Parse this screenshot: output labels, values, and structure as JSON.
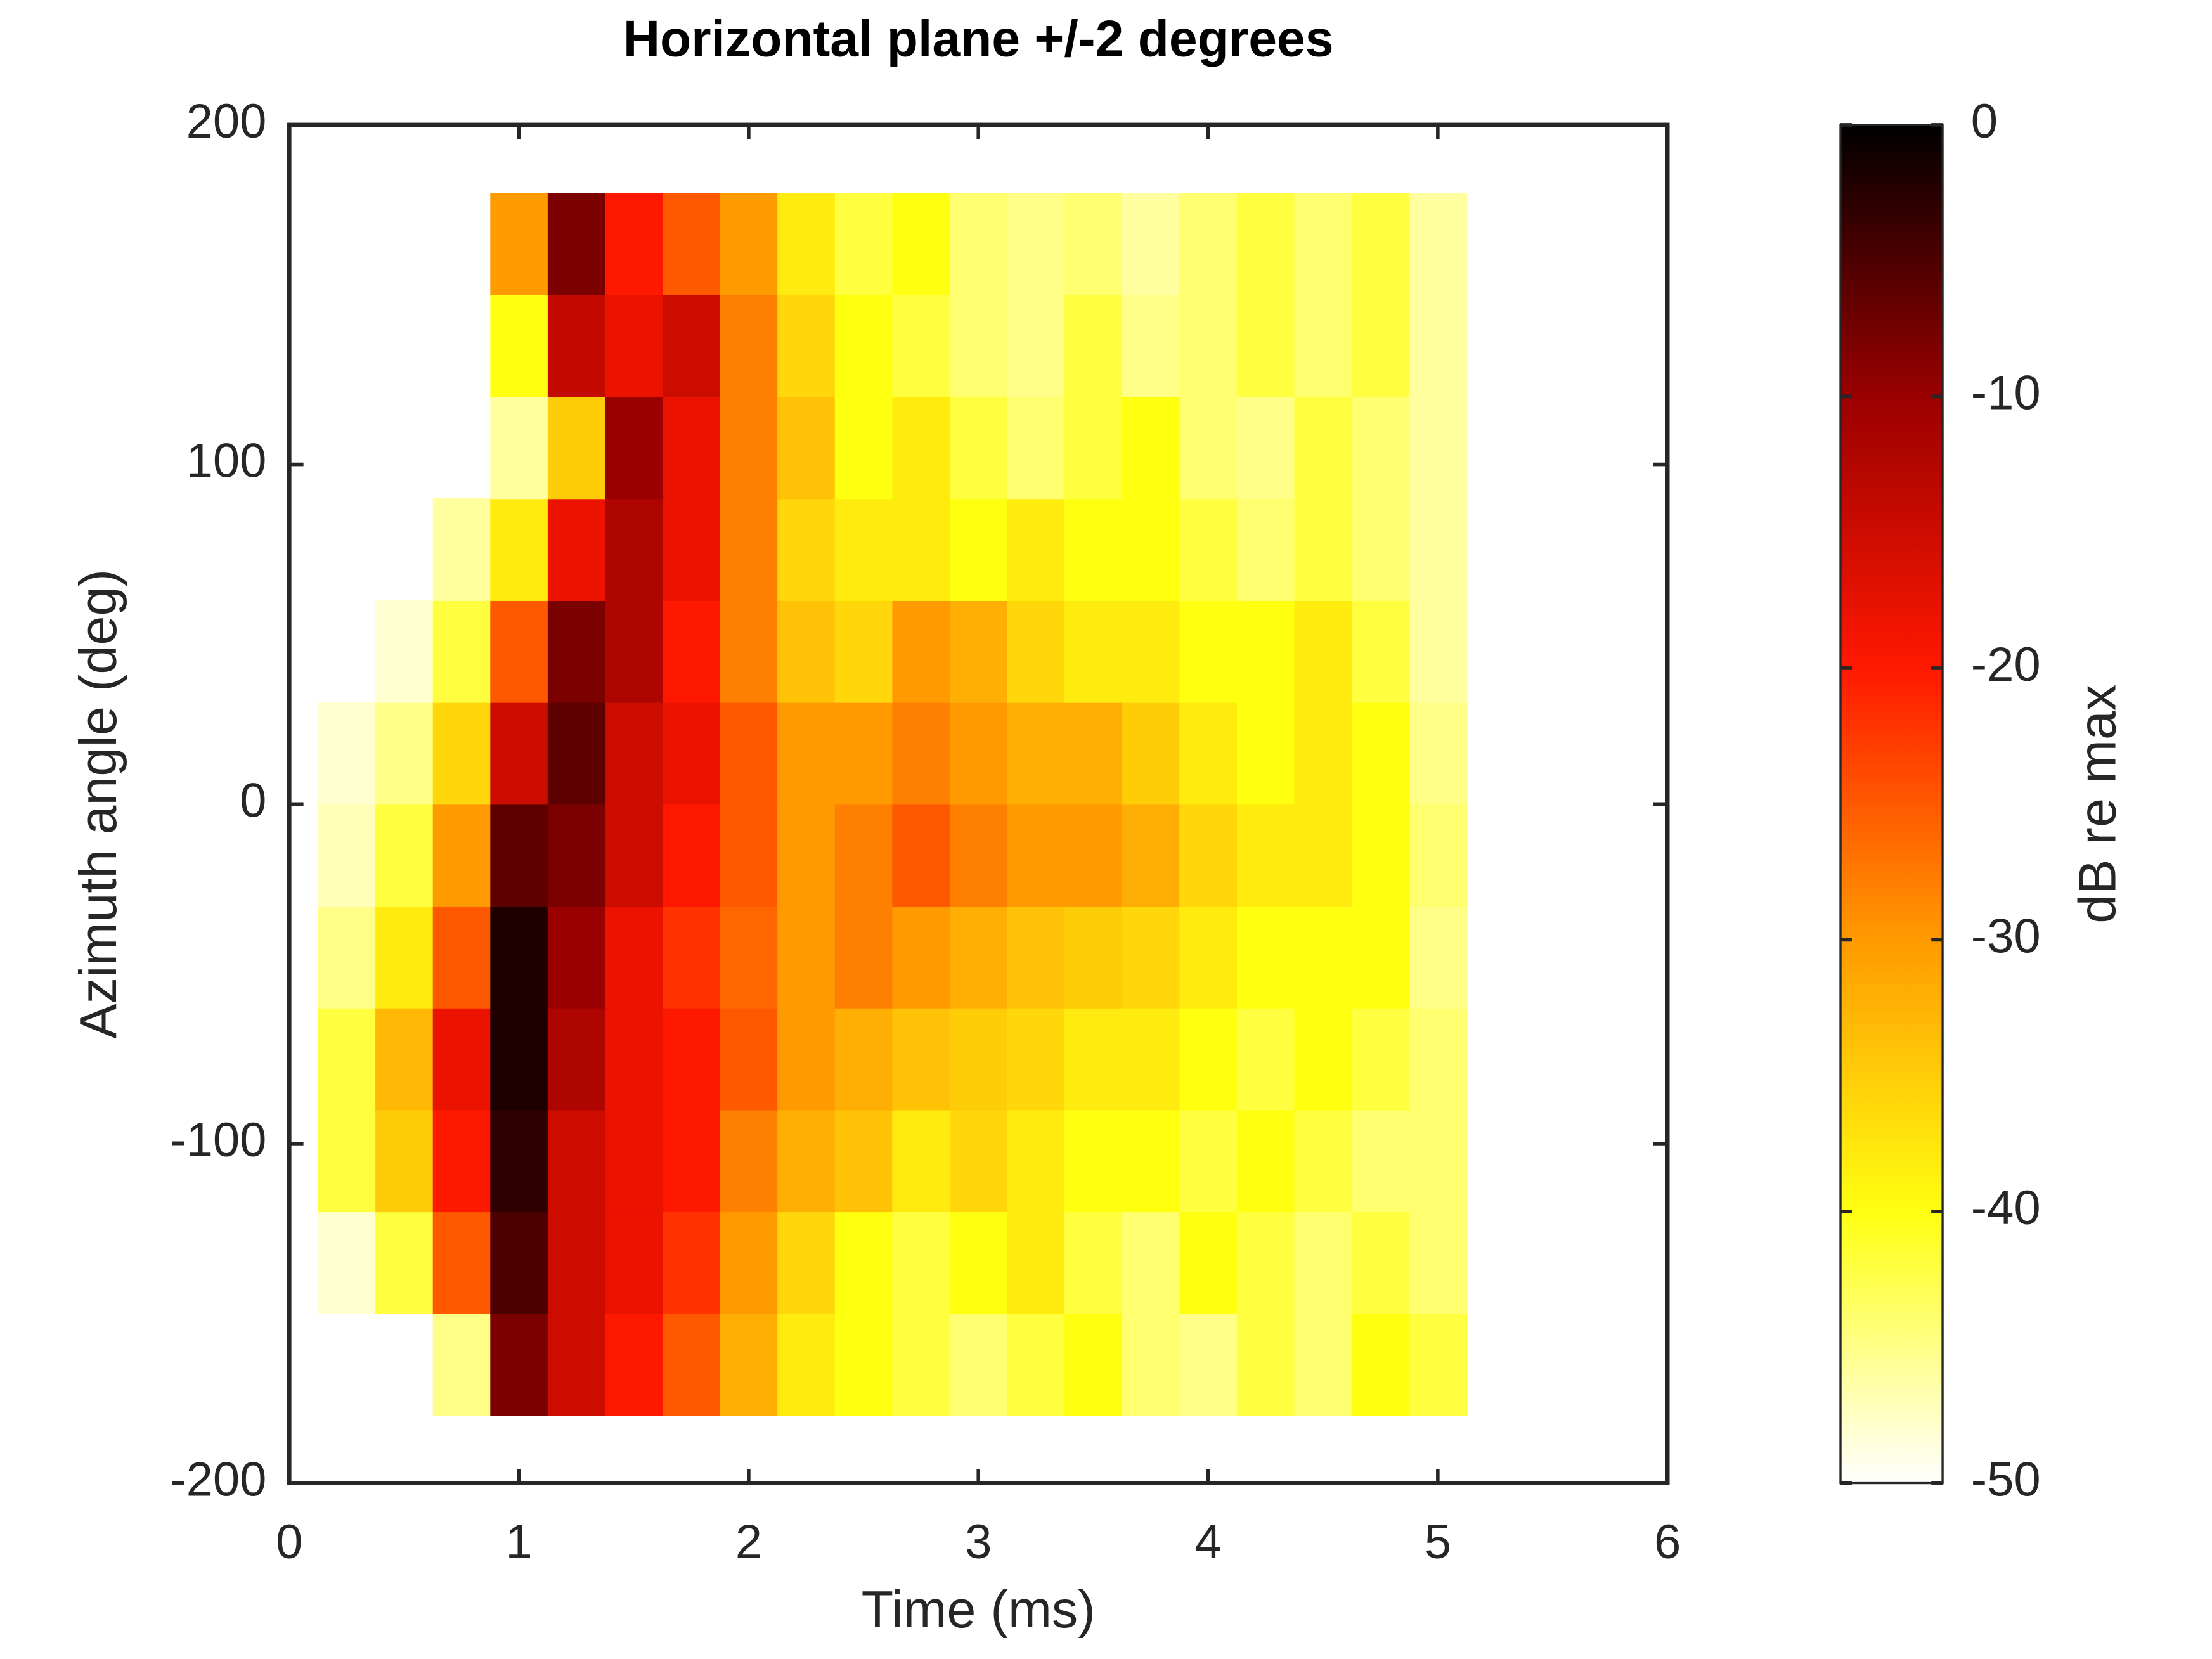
{
  "chart_data": {
    "type": "heatmap",
    "title": "Horizontal plane +/-2 degrees",
    "xlabel": "Time (ms)",
    "ylabel": "Azimuth angle (deg)",
    "colorbar_label": "dB re max",
    "x": [
      0.25,
      0.5,
      0.75,
      1.0,
      1.25,
      1.5,
      1.75,
      2.0,
      2.25,
      2.5,
      2.75,
      3.0,
      3.25,
      3.5,
      3.75,
      4.0,
      4.25,
      4.5,
      4.75,
      5.0
    ],
    "y": [
      -165,
      -135,
      -105,
      -75,
      -45,
      -15,
      15,
      45,
      75,
      105,
      135,
      165
    ],
    "z": [
      [
        null,
        null,
        -45,
        -8,
        -15,
        -20,
        -25,
        -32,
        -38,
        -40,
        -42,
        -44,
        -42,
        -40,
        -44,
        -45,
        -42,
        -44,
        -40,
        -42
      ],
      [
        -48,
        -42,
        -25,
        -5,
        -15,
        -18,
        -22,
        -30,
        -36,
        -40,
        -42,
        -40,
        -38,
        -42,
        -44,
        -40,
        -42,
        -44,
        -42,
        -44
      ],
      [
        -42,
        -35,
        -20,
        -3,
        -15,
        -18,
        -20,
        -28,
        -32,
        -34,
        -38,
        -36,
        -38,
        -40,
        -40,
        -42,
        -40,
        -42,
        -44,
        -44
      ],
      [
        -42,
        -33,
        -18,
        -2,
        -12,
        -18,
        -20,
        -25,
        -30,
        -32,
        -34,
        -35,
        -36,
        -38,
        -38,
        -40,
        -42,
        -40,
        -42,
        -44
      ],
      [
        -45,
        -38,
        -25,
        -2,
        -10,
        -18,
        -22,
        -26,
        -30,
        -28,
        -30,
        -32,
        -34,
        -35,
        -36,
        -38,
        -40,
        -40,
        -40,
        -45
      ],
      [
        -47,
        -42,
        -30,
        -6,
        -8,
        -15,
        -20,
        -25,
        -30,
        -28,
        -25,
        -28,
        -30,
        -30,
        -32,
        -36,
        -38,
        -38,
        -40,
        -44
      ],
      [
        -48,
        -45,
        -36,
        -15,
        -6,
        -15,
        -18,
        -25,
        -30,
        -30,
        -28,
        -30,
        -32,
        -32,
        -35,
        -38,
        -40,
        -38,
        -40,
        -45
      ],
      [
        null,
        -48,
        -42,
        -25,
        -8,
        -12,
        -20,
        -28,
        -34,
        -36,
        -30,
        -32,
        -36,
        -38,
        -38,
        -40,
        -40,
        -38,
        -42,
        -46
      ],
      [
        null,
        null,
        -46,
        -38,
        -18,
        -12,
        -18,
        -28,
        -36,
        -38,
        -38,
        -40,
        -38,
        -40,
        -40,
        -42,
        -44,
        -42,
        -44,
        -46
      ],
      [
        null,
        null,
        null,
        -46,
        -35,
        -10,
        -18,
        -28,
        -34,
        -40,
        -38,
        -42,
        -44,
        -42,
        -40,
        -44,
        -45,
        -42,
        -44,
        -46
      ],
      [
        null,
        null,
        null,
        -40,
        -14,
        -18,
        -15,
        -28,
        -36,
        -40,
        -42,
        -44,
        -45,
        -42,
        -45,
        -44,
        -42,
        -44,
        -42,
        -46
      ],
      [
        null,
        null,
        null,
        -30,
        -8,
        -20,
        -25,
        -30,
        -38,
        -42,
        -40,
        -44,
        -45,
        -44,
        -46,
        -44,
        -42,
        -44,
        -42,
        -46
      ]
    ],
    "xlim": [
      0,
      6
    ],
    "xticks": [
      0,
      1,
      2,
      3,
      4,
      5,
      6
    ],
    "ylim": [
      -200,
      200
    ],
    "yticks": [
      -200,
      -100,
      0,
      100,
      200
    ],
    "clim": [
      -50,
      0
    ],
    "cticks": [
      -50,
      -40,
      -30,
      -20,
      -10,
      0
    ],
    "colormap": [
      "#ffffff",
      "#ffff10",
      "#ff9a00",
      "#ff1800",
      "#9a0000",
      "#000000"
    ]
  }
}
